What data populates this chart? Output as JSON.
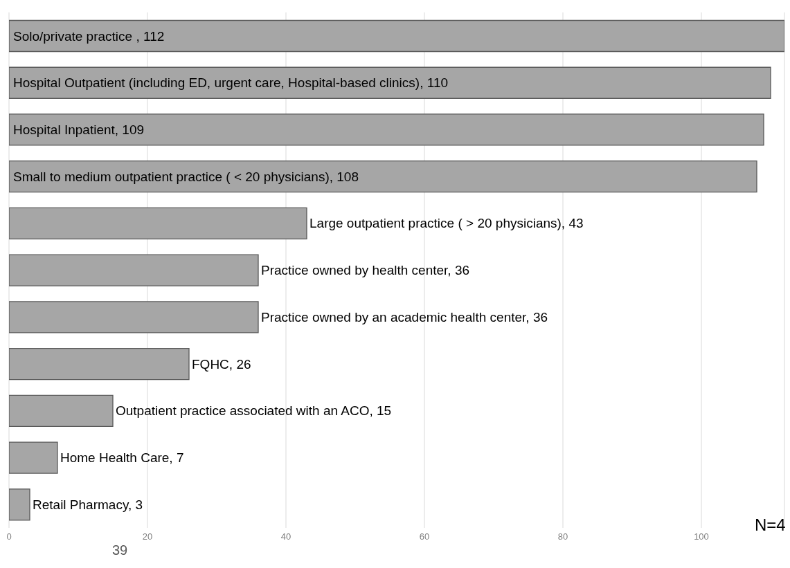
{
  "chart_data": {
    "type": "bar",
    "orientation": "horizontal",
    "categories": [
      null,
      null,
      null,
      null,
      null,
      null,
      null,
      null,
      null,
      null,
      null
    ],
    "values": [
      112,
      110,
      109,
      108,
      43,
      36,
      36,
      26,
      15,
      7,
      3
    ],
    "value_labels": [
      "Solo/private practice , 112",
      "Hospital Outpatient (including ED, urgent care, Hospital-based clinics), 110",
      "Hospital Inpatient, 109",
      "Small to medium outpatient practice ( < 20 physicians), 108",
      "Large outpatient practice ( > 20 physicians), 43",
      "Practice owned by health center, 36",
      "Practice owned by an academic health center, 36",
      "FQHC, 26",
      "Outpatient practice associated with an ACO, 15",
      "Home Health Care, 7",
      "Retail Pharmacy, 3"
    ],
    "color": "#a6a6a6",
    "xlim": [
      0,
      112
    ],
    "xticks": [
      0,
      20,
      40,
      60,
      80,
      100
    ],
    "grid": "x",
    "tick_labels": "x",
    "annotations": [
      "N=4",
      "39"
    ]
  }
}
